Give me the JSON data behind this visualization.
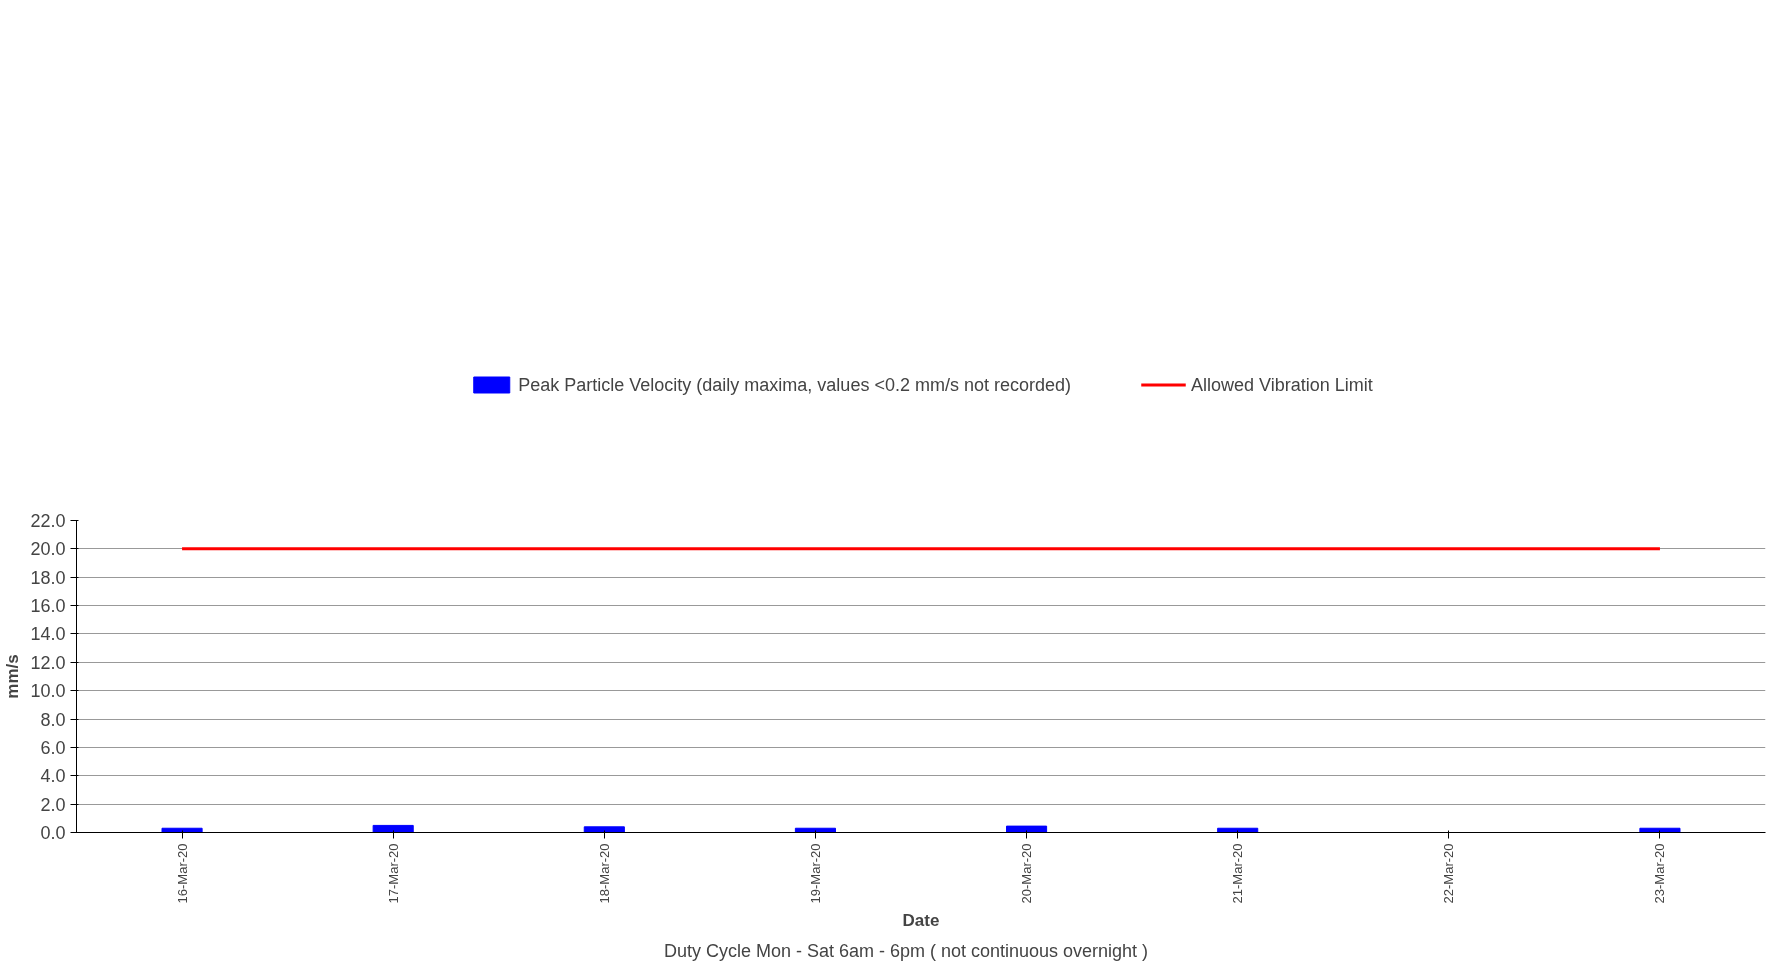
{
  "chart_data": {
    "type": "bar",
    "categories": [
      "16-Mar-20",
      "17-Mar-20",
      "18-Mar-20",
      "19-Mar-20",
      "20-Mar-20",
      "21-Mar-20",
      "22-Mar-20",
      "23-Mar-20"
    ],
    "series": [
      {
        "name": "Peak Particle Velocity (daily maxima, values <0.2 mm/s not recorded)",
        "color": "#0000ff",
        "values": [
          0.3,
          0.5,
          0.4,
          0.3,
          0.45,
          0.3,
          null,
          0.3
        ]
      },
      {
        "name": "Allowed Vibration Limit",
        "type": "line",
        "color": "#ff0000",
        "values": [
          20,
          20,
          20,
          20,
          20,
          20,
          20,
          20
        ]
      }
    ],
    "xlabel": "Date",
    "ylabel": "mm/s",
    "annotations": [
      "Duty Cycle    Mon - Sat   6am - 6pm  ( not continuous overnight )"
    ],
    "ylim": [
      0,
      22
    ],
    "yticks": [
      {
        "value": 0,
        "label": "0.0"
      },
      {
        "value": 2,
        "label": "2.0"
      },
      {
        "value": 4,
        "label": "4.0"
      },
      {
        "value": 6,
        "label": "6.0"
      },
      {
        "value": 8,
        "label": "8.0"
      },
      {
        "value": 10,
        "label": "10.0"
      },
      {
        "value": 12,
        "label": "12.0"
      },
      {
        "value": 14,
        "label": "14.0"
      },
      {
        "value": 16,
        "label": "16.0"
      },
      {
        "value": 18,
        "label": "18.0"
      },
      {
        "value": 20,
        "label": "20.0"
      },
      {
        "value": 22,
        "label": "22.0"
      }
    ],
    "grid": "y",
    "legend": "top",
    "marker": "none",
    "line_style": "solid"
  }
}
